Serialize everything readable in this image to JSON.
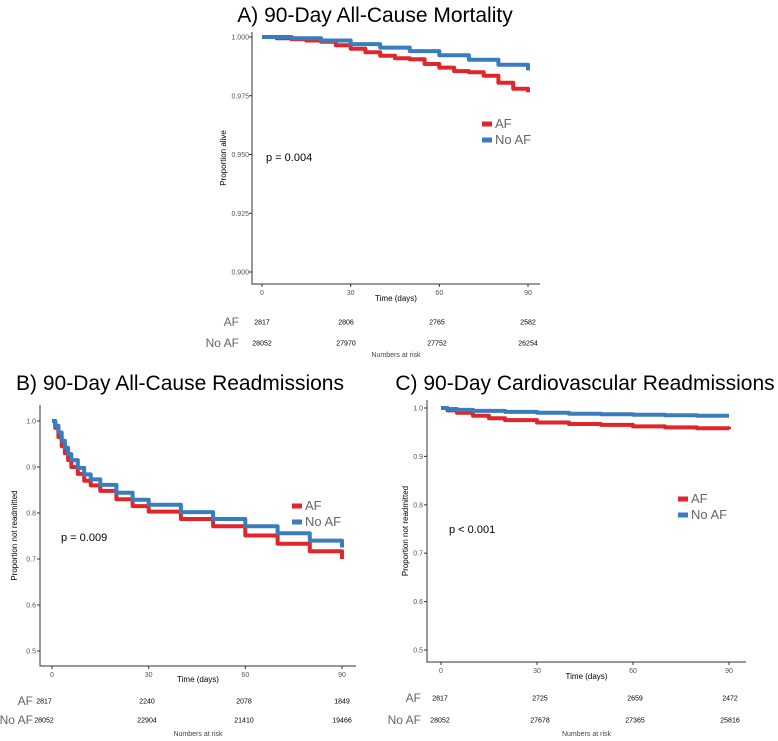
{
  "chart_data": [
    {
      "type": "line",
      "title": "A) 90-Day All-Cause Mortality",
      "xlabel": "Time (days)",
      "ylabel": "Proportion alive",
      "xlim": [
        0,
        90
      ],
      "ylim": [
        0.9,
        1.0
      ],
      "xticks": [
        "0",
        "30",
        "60",
        "90"
      ],
      "yticks": [
        "0.900",
        "0.925",
        "0.950",
        "0.975",
        "1.000"
      ],
      "p_value": "p = 0.004",
      "legend_position": "right",
      "series": [
        {
          "name": "AF",
          "color": "#e0262a",
          "x": [
            0,
            5,
            10,
            15,
            20,
            25,
            30,
            35,
            40,
            45,
            50,
            55,
            60,
            65,
            70,
            75,
            80,
            85,
            90
          ],
          "y": [
            1.0,
            0.9995,
            0.999,
            0.9985,
            0.998,
            0.9965,
            0.995,
            0.9935,
            0.992,
            0.991,
            0.9905,
            0.9885,
            0.987,
            0.9855,
            0.985,
            0.9835,
            0.9805,
            0.978,
            0.9765
          ]
        },
        {
          "name": "No AF",
          "color": "#3a7dbd",
          "x": [
            0,
            10,
            20,
            30,
            40,
            50,
            60,
            70,
            80,
            90
          ],
          "y": [
            1.0,
            0.9995,
            0.9985,
            0.997,
            0.9955,
            0.994,
            0.9922,
            0.9903,
            0.9882,
            0.9858
          ]
        }
      ],
      "risk_table": {
        "title": "Numbers at risk",
        "times": [
          0,
          30,
          60,
          90
        ],
        "rows": [
          {
            "label": "AF",
            "values": [
              "2817",
              "2806",
              "2765",
              "2582"
            ]
          },
          {
            "label": "No AF",
            "values": [
              "28052",
              "27970",
              "27752",
              "26254"
            ]
          }
        ]
      }
    },
    {
      "type": "line",
      "title": "B) 90-Day All-Cause Readmissions",
      "xlabel": "Time (days)",
      "ylabel": "Proportion not readmitted",
      "xlim": [
        0,
        90
      ],
      "ylim": [
        0.5,
        1.0
      ],
      "xticks": [
        "0",
        "30",
        "60",
        "90"
      ],
      "yticks": [
        "0.5",
        "0.6",
        "0.7",
        "0.8",
        "0.9",
        "1.0"
      ],
      "p_value": "p = 0.009",
      "legend_position": "right",
      "series": [
        {
          "name": "AF",
          "color": "#e0262a",
          "x": [
            0,
            1,
            2,
            3,
            4,
            5,
            6,
            8,
            10,
            12,
            15,
            20,
            25,
            30,
            40,
            50,
            60,
            70,
            80,
            90
          ],
          "y": [
            1.0,
            0.985,
            0.965,
            0.945,
            0.93,
            0.915,
            0.9,
            0.885,
            0.87,
            0.86,
            0.848,
            0.83,
            0.815,
            0.803,
            0.787,
            0.771,
            0.751,
            0.733,
            0.717,
            0.7
          ]
        },
        {
          "name": "No AF",
          "color": "#3a7dbd",
          "x": [
            0,
            1,
            2,
            3,
            4,
            5,
            6,
            8,
            10,
            12,
            15,
            20,
            25,
            30,
            40,
            50,
            60,
            70,
            80,
            90
          ],
          "y": [
            1.0,
            0.99,
            0.975,
            0.957,
            0.942,
            0.928,
            0.915,
            0.898,
            0.884,
            0.873,
            0.861,
            0.844,
            0.829,
            0.818,
            0.802,
            0.787,
            0.771,
            0.756,
            0.74,
            0.725
          ]
        }
      ],
      "risk_table": {
        "title": "Numbers at risk",
        "times": [
          0,
          30,
          60,
          90
        ],
        "rows": [
          {
            "label": "AF",
            "values": [
              "2817",
              "2240",
              "2078",
              "1849"
            ]
          },
          {
            "label": "No AF",
            "values": [
              "28052",
              "22904",
              "21410",
              "19466"
            ]
          }
        ]
      }
    },
    {
      "type": "line",
      "title": "C) 90-Day Cardiovascular Readmissions",
      "xlabel": "Time (days)",
      "ylabel": "Proportion not readmitted",
      "xlim": [
        0,
        90
      ],
      "ylim": [
        0.5,
        1.0
      ],
      "xticks": [
        "0",
        "30",
        "60",
        "90"
      ],
      "yticks": [
        "0.5",
        "0.6",
        "0.7",
        "0.8",
        "0.9",
        "1.0"
      ],
      "p_value": "p < 0.001",
      "legend_position": "right",
      "series": [
        {
          "name": "AF",
          "color": "#e0262a",
          "x": [
            0,
            2,
            5,
            10,
            15,
            20,
            30,
            40,
            50,
            60,
            70,
            80,
            90
          ],
          "y": [
            1.0,
            0.995,
            0.99,
            0.984,
            0.979,
            0.975,
            0.97,
            0.967,
            0.965,
            0.962,
            0.96,
            0.958,
            0.956
          ]
        },
        {
          "name": "No AF",
          "color": "#3a7dbd",
          "x": [
            0,
            2,
            5,
            10,
            20,
            30,
            40,
            50,
            60,
            70,
            80,
            90
          ],
          "y": [
            1.0,
            0.998,
            0.996,
            0.994,
            0.992,
            0.99,
            0.988,
            0.987,
            0.986,
            0.985,
            0.984,
            0.984
          ]
        }
      ],
      "risk_table": {
        "title": "Numbers at risk",
        "times": [
          0,
          30,
          60,
          90
        ],
        "rows": [
          {
            "label": "AF",
            "values": [
              "2817",
              "2725",
              "2659",
              "2472"
            ]
          },
          {
            "label": "No AF",
            "values": [
              "28052",
              "27678",
              "27365",
              "25816"
            ]
          }
        ]
      }
    }
  ]
}
